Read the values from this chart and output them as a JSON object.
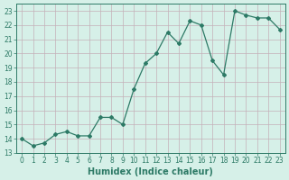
{
  "x": [
    0,
    1,
    2,
    3,
    4,
    5,
    6,
    7,
    8,
    9,
    10,
    11,
    12,
    13,
    14,
    15,
    16,
    17,
    18,
    19,
    20,
    21,
    22,
    23
  ],
  "y": [
    14.0,
    13.5,
    13.7,
    14.3,
    14.5,
    14.2,
    14.2,
    15.5,
    15.5,
    15.0,
    17.5,
    19.3,
    20.0,
    21.5,
    20.7,
    22.3,
    22.0,
    19.5,
    18.5,
    23.0,
    22.7,
    22.5,
    22.5,
    21.7
  ],
  "line_color": "#2d7a66",
  "marker": "D",
  "markersize": 2.0,
  "linewidth": 0.9,
  "bg_color": "#d6f0e8",
  "grid_color": "#c4b0b8",
  "xlabel": "Humidex (Indice chaleur)",
  "ylabel": "",
  "xlim": [
    -0.5,
    23.5
  ],
  "ylim": [
    13,
    23.5
  ],
  "yticks": [
    13,
    14,
    15,
    16,
    17,
    18,
    19,
    20,
    21,
    22,
    23
  ],
  "xticks": [
    0,
    1,
    2,
    3,
    4,
    5,
    6,
    7,
    8,
    9,
    10,
    11,
    12,
    13,
    14,
    15,
    16,
    17,
    18,
    19,
    20,
    21,
    22,
    23
  ],
  "tick_color": "#2d7a66",
  "tick_fontsize": 5.5,
  "xlabel_fontsize": 7,
  "xlabel_fontweight": "bold"
}
